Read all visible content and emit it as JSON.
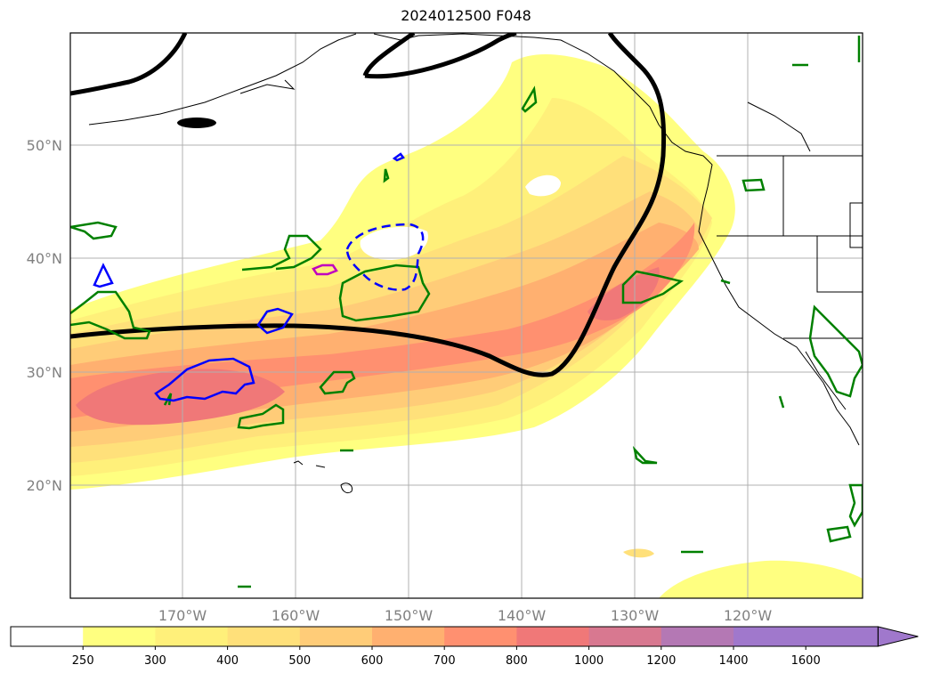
{
  "title": "2024012500 F048",
  "map": {
    "lat_labels": [
      "50°N",
      "40°N",
      "30°N",
      "20°N"
    ],
    "lon_labels": [
      "170°W",
      "160°W",
      "150°W",
      "140°W",
      "130°W",
      "120°W"
    ],
    "fill_colors": [
      "#ffff80",
      "#fff07a",
      "#ffe07a",
      "#ffcc78",
      "#ffb070",
      "#ff9070",
      "#f07878",
      "#d87890",
      "#b478b4",
      "#a078cc"
    ],
    "contour_colors": {
      "geopotential": "#000000",
      "green": "#008000",
      "blue": "#0000ff",
      "magenta": "#c000c0"
    }
  },
  "colorbar": {
    "labels": [
      "250",
      "300",
      "400",
      "500",
      "600",
      "700",
      "800",
      "1000",
      "1200",
      "1400",
      "1600"
    ],
    "colors": [
      "#ffffff",
      "#ffff80",
      "#fff07a",
      "#ffe07a",
      "#ffcc78",
      "#ffb070",
      "#ff9070",
      "#f07878",
      "#d87890",
      "#b478b4",
      "#a078cc",
      "#a078cc"
    ],
    "extend": "max"
  }
}
